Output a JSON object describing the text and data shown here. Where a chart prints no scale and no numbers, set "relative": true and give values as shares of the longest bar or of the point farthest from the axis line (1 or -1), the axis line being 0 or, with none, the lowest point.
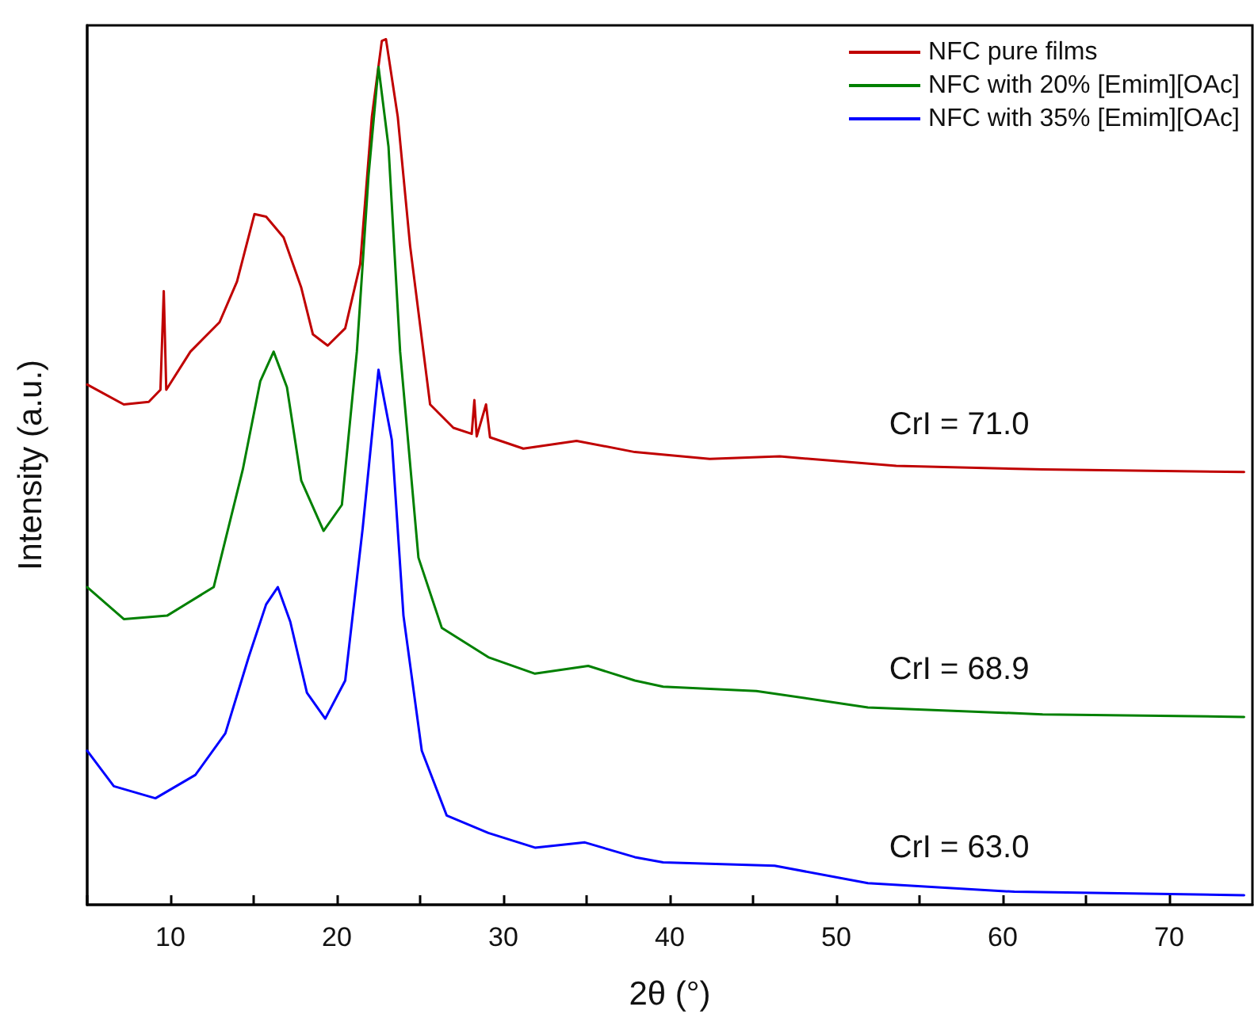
{
  "chart_data": {
    "type": "line",
    "relative": true,
    "xlabel": "2θ (°)",
    "ylabel": "Intensity (a.u.)",
    "xlim": [
      5,
      75
    ],
    "xticks": [
      {
        "value": 5,
        "label": null
      },
      10,
      {
        "value": 15,
        "label": null
      },
      20,
      {
        "value": 25,
        "label": null
      },
      30,
      {
        "value": 35,
        "label": null
      },
      40,
      {
        "value": 45,
        "label": null
      },
      50,
      {
        "value": 55,
        "label": null
      },
      60,
      {
        "value": 65,
        "label": null
      },
      70
    ],
    "tick_labels": "x",
    "grid": false,
    "legend": "top right",
    "marker": "none",
    "line_style": "solid",
    "series": [
      {
        "name": "NFC pure films",
        "color": "#c00000",
        "x": [
          5.0,
          7.2,
          8.7,
          9.4,
          9.6,
          9.75,
          11.2,
          12.95,
          14.0,
          15.05,
          15.75,
          16.8,
          17.86,
          18.56,
          19.45,
          20.5,
          21.4,
          22.1,
          22.7,
          22.95,
          23.66,
          24.4,
          25.6,
          27.0,
          28.1,
          28.26,
          28.4,
          28.96,
          29.2,
          31.2,
          34.4,
          37.9,
          42.4,
          46.6,
          53.6,
          62.4,
          74.5
        ],
        "values": [
          0.601,
          0.578,
          0.581,
          0.595,
          0.709,
          0.595,
          0.639,
          0.673,
          0.72,
          0.798,
          0.795,
          0.771,
          0.713,
          0.659,
          0.646,
          0.666,
          0.74,
          0.91,
          0.998,
          1.0,
          0.91,
          0.761,
          0.578,
          0.551,
          0.544,
          0.583,
          0.541,
          0.578,
          0.54,
          0.527,
          0.536,
          0.523,
          0.515,
          0.518,
          0.507,
          0.503,
          0.5
        ]
      },
      {
        "name": "NFC with 20% [Emim][OAc]",
        "color": "#008000",
        "x": [
          5.0,
          7.2,
          9.8,
          12.6,
          14.35,
          15.4,
          16.2,
          17.0,
          17.86,
          19.2,
          20.3,
          21.2,
          21.9,
          22.5,
          23.1,
          23.8,
          24.9,
          26.3,
          29.1,
          31.9,
          35.1,
          37.9,
          39.6,
          45.2,
          51.9,
          62.4,
          74.5
        ],
        "values": [
          0.367,
          0.33,
          0.334,
          0.367,
          0.503,
          0.605,
          0.639,
          0.598,
          0.49,
          0.432,
          0.462,
          0.639,
          0.842,
          0.968,
          0.876,
          0.639,
          0.401,
          0.32,
          0.286,
          0.267,
          0.276,
          0.259,
          0.252,
          0.247,
          0.228,
          0.22,
          0.217
        ]
      },
      {
        "name": "NFC with 35% [Emim][OAc]",
        "color": "#0000ff",
        "x": [
          5.0,
          6.6,
          9.1,
          11.5,
          13.3,
          14.7,
          15.75,
          16.45,
          17.2,
          18.2,
          19.3,
          20.5,
          21.55,
          22.5,
          23.3,
          24.0,
          25.1,
          26.6,
          29.1,
          31.9,
          34.9,
          37.9,
          39.6,
          46.3,
          51.9,
          60.7,
          74.5
        ],
        "values": [
          0.178,
          0.137,
          0.123,
          0.15,
          0.198,
          0.286,
          0.347,
          0.367,
          0.327,
          0.245,
          0.215,
          0.259,
          0.435,
          0.618,
          0.537,
          0.334,
          0.178,
          0.103,
          0.083,
          0.066,
          0.072,
          0.055,
          0.049,
          0.045,
          0.025,
          0.015,
          0.011
        ]
      }
    ],
    "annotations": [
      "CrI = 71.0",
      "CrI = 68.9",
      "CrI = 63.0"
    ]
  }
}
